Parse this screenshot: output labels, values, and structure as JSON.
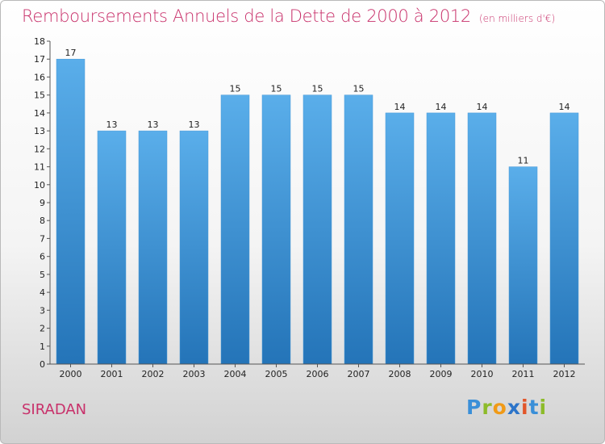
{
  "chart_data": {
    "type": "bar",
    "title": "Remboursements Annuels de la Dette de 2000 à 2012",
    "subtitle": "(en milliers d'€)",
    "categories": [
      "2000",
      "2001",
      "2002",
      "2003",
      "2004",
      "2005",
      "2006",
      "2007",
      "2008",
      "2009",
      "2010",
      "2011",
      "2012"
    ],
    "values": [
      17,
      13,
      13,
      13,
      15,
      15,
      15,
      15,
      14,
      14,
      14,
      11,
      14
    ],
    "data_labels": [
      "17",
      "13",
      "13",
      "13",
      "15",
      "15",
      "15",
      "15",
      "14",
      "14",
      "14",
      "11",
      "14"
    ],
    "ylim": [
      0,
      18
    ],
    "yticks": [
      0,
      1,
      2,
      3,
      4,
      5,
      6,
      7,
      8,
      9,
      10,
      11,
      12,
      13,
      14,
      15,
      16,
      17,
      18
    ],
    "ytick_labels": [
      "0",
      "1",
      "2",
      "3",
      "4",
      "5",
      "6",
      "7",
      "8",
      "9",
      "10",
      "11",
      "12",
      "13",
      "14",
      "15",
      "16",
      "17",
      "18"
    ],
    "xlabel": "",
    "ylabel": "",
    "grid": false,
    "bar_color_top": "#5aaeea",
    "bar_color_bottom": "#2474b8"
  },
  "footer": {
    "place": "SIRADAN",
    "logo": {
      "p": "P",
      "r": "r",
      "o": "o",
      "x": "x",
      "i1": "i",
      "t": "t",
      "i2": "i"
    }
  }
}
